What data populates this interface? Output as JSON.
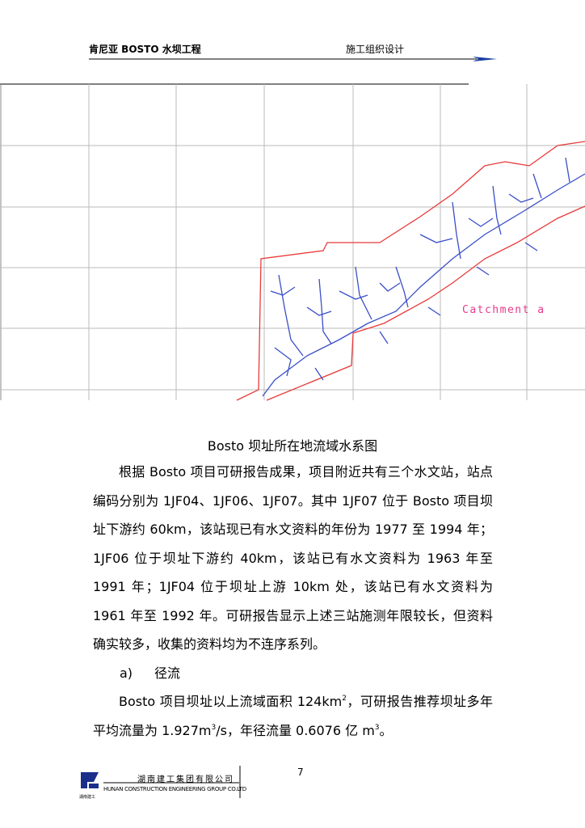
{
  "header": {
    "project": "肯尼亚 BOSTO 水坝工程",
    "section": "施工组织设计"
  },
  "figure": {
    "map_label": "Catchment a",
    "caption": "Bosto 坝址所在地流域水系图"
  },
  "body": {
    "paragraph_1": "根据 Bosto 项目可研报告成果，项目附近共有三个水文站，站点编码分别为 1JF04、1JF06、1JF07。其中 1JF07 位于 Bosto 项目坝址下游约 60km，该站现已有水文资料的年份为 1977 至 1994 年；1JF06 位于坝址下游约 40km，该站已有水文资料为 1963 年至 1991 年；1JF04 位于坝址上游 10km 处，该站已有水文资料为 1961 年至 1992 年。可研报告显示上述三站施测年限较长，但资料确实较多，收集的资料均为不连序系列。",
    "item_marker": "a)",
    "item_title": "径流",
    "paragraph_2": [
      "Bosto 项目坝址以上流域面积 124km",
      "2",
      "，可研报告推荐坝址多年平均流量为 1.927m",
      "3",
      "/s，年径流量 0.6076 亿 m",
      "3",
      "。"
    ]
  },
  "footer": {
    "page_number": "7",
    "company_cn": "湖南建工集团有限公司",
    "company_en": "HUNAN CONSTRUCTION ENGINEERING GROUP CO.LTD",
    "logo_text": "湖南建工"
  }
}
